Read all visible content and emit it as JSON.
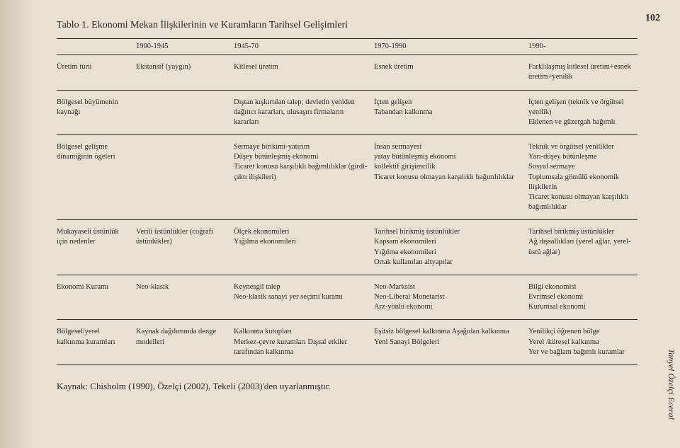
{
  "title": "Tablo 1. Ekonomi Mekan İlişkilerinin ve Kuramların Tarihsel Gelişimleri",
  "side_num": "102",
  "side_author": "Tanyel Özelçi Eceral",
  "columns": {
    "c1": "",
    "c2": "1900-1945",
    "c3": "1945-70",
    "c4": "1970-1990",
    "c5": "1990-"
  },
  "rows": [
    {
      "label": "Üretim türü",
      "c2": "Ekstansif (yaygın)",
      "c3": "Kitlesel üretim",
      "c4": "Esnek üretim",
      "c5": "Farklılaşmış kitlesel üretim+esnek üretim+yenilik"
    },
    {
      "label": "Bölgesel büyümenin kaynağı",
      "c2": "",
      "c3": "Dıştan kışkırtılan talep; devletin yeniden dağıtıcı kararları, ulusaşırı firmaların kararları",
      "c4": "İçten gelişen\nTabandan kalkınma",
      "c5": "İçten gelişen (teknik ve örgütsel yenilik)\nEklenen ve güzergah bağımlı"
    },
    {
      "label": "Bölgesel gelişme dinamiğinin ögeleri",
      "c2": "",
      "c3": "Sermaye birikimi-yatırım\nDüşey bütünleşmiş ekonomi\nTicaret konusu karşılıklı bağımlılıklar (girdi-çıktı ilişkileri)",
      "c4": "İnsan sermayesi\nyatay bütünleşmiş ekonomi\nkollektif girişimcilik\nTicaret konusu olmayan karşılıklı bağımlılıklar",
      "c5": "Teknik ve örgütsel yenilikler\nYarı-düşey bütünleşme\nSosyal sermaye\nToplumsala gömülü ekonomik ilişkilerin\nTicaret konusu olmayan karşılıklı bağımlılıklar"
    },
    {
      "label": "Mukayaseli üstünlük için nedenler",
      "c2": "Verili üstünlükler (coğrafi üstünlükler)",
      "c3": "Ölçek ekonomileri\nYığılma ekonomileri",
      "c4": "Tarihsel birikmiş üstünlükler\nKapsam ekonomileri\nYığılma ekonomileri\nOrtak kullanılan altyapılar",
      "c5": "Tarihsel birikmiş üstünlükler\nAğ dışsallıkları (yerel ağlar, yerel-üstü ağlar)"
    },
    {
      "label": "Ekonomi Kuramı",
      "c2": "Neo-klasik",
      "c3": "Keynesgil talep\nNeo-klasik sanayi yer seçimi kuramı",
      "c4": "Neo-Marksist\nNeo-Liberal Monetarist\nArz-yönlü ekonomi",
      "c5": "Bilgi ekonomisi\nEvrimsel ekonomi\nKurumsal ekonomi"
    },
    {
      "label": "Bölgesel/yerel kalkınma kuramları",
      "c2": "Kaynak dağılımında denge modelleri",
      "c3": "Kalkınma kutupları\nMerkez-çevre kuramları Dışsal etkiler tarafından kalkınma",
      "c4": "Eşitsiz bölgesel kalkınma Aşağıdan kalkınma\nYeni Sanayi Bölgeleri",
      "c5": "Yenilikçi öğrenen bölge\nYerel /küresel kalkınma\nYer ve bağlam bağımlı kuramlar"
    }
  ],
  "source": "Kaynak: Chisholm (1990), Özelçi (2002), Tekeli (2003)'den uyarlanmıştır."
}
